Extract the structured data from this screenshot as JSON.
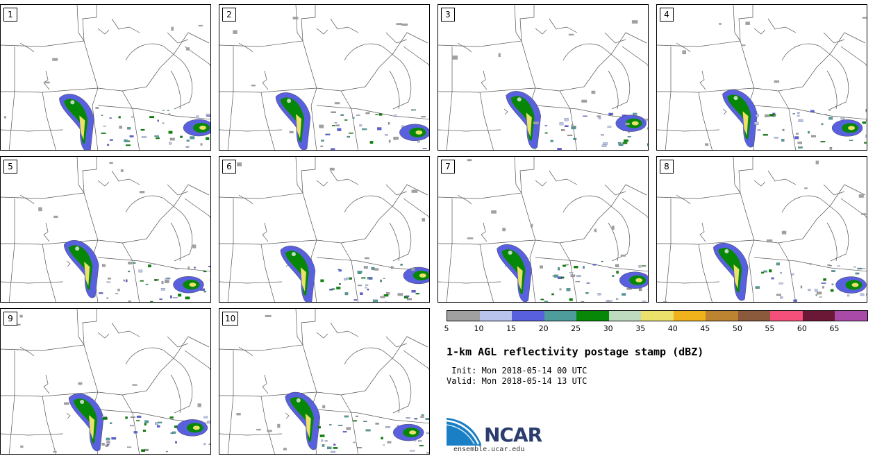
{
  "panels": [
    {
      "label": "1"
    },
    {
      "label": "2"
    },
    {
      "label": "3"
    },
    {
      "label": "4"
    },
    {
      "label": "5"
    },
    {
      "label": "6"
    },
    {
      "label": "7"
    },
    {
      "label": "8"
    },
    {
      "label": "9"
    },
    {
      "label": "10"
    }
  ],
  "colorbar": {
    "colors": [
      "#a0a0a0",
      "#b8c4ec",
      "#5960de",
      "#4f9c9c",
      "#078707",
      "#bfdbbf",
      "#ebe16b",
      "#efb21a",
      "#bc8330",
      "#8b5a3c",
      "#f4507a",
      "#6b1736",
      "#a94aa8"
    ],
    "ticks": [
      "5",
      "10",
      "15",
      "20",
      "25",
      "30",
      "35",
      "40",
      "45",
      "50",
      "55",
      "60",
      "65"
    ]
  },
  "title": "1-km AGL reflectivity postage stamp (dBZ)",
  "init": " Init: Mon 2018-05-14 00 UTC",
  "valid": "Valid: Mon 2018-05-14 13 UTC",
  "logo": {
    "text": "NCAR",
    "url": "ensemble.ucar.edu",
    "blue": "#1a7fc4"
  }
}
